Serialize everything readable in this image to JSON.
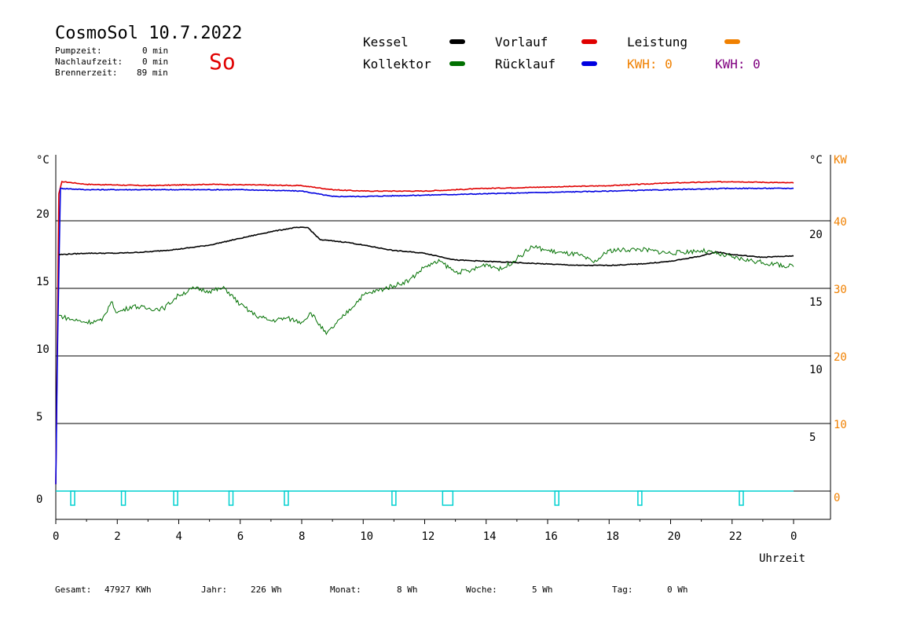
{
  "header": {
    "title": "CosmoSol 10.7.2022",
    "day": "So",
    "stats": [
      {
        "label": "Pumpzeit:",
        "value": "0 min"
      },
      {
        "label": "Nachlaufzeit:",
        "value": "0 min"
      },
      {
        "label": "Brennerzeit:",
        "value": "89 min"
      }
    ]
  },
  "legend": {
    "kessel": "Kessel",
    "vorlauf": "Vorlauf",
    "leistung": "Leistung",
    "kollektor": "Kollektor",
    "ruecklauf": "Rücklauf",
    "kwh_orange": "KWH: 0",
    "kwh_purple": "KWH: 0"
  },
  "colors": {
    "kessel": "#000000",
    "vorlauf": "#e00000",
    "ruecklauf": "#0000e0",
    "kollektor": "#007000",
    "leistung": "#f08000",
    "kwh_purple": "#800080",
    "pump": "#00d0d0"
  },
  "footer": [
    {
      "label": "Gesamt:",
      "value": "47927 KWh"
    },
    {
      "label": "Jahr:",
      "value": "226 Wh"
    },
    {
      "label": "Monat:",
      "value": "8 Wh"
    },
    {
      "label": "Woche:",
      "value": "5 Wh"
    },
    {
      "label": "Tag:",
      "value": "0 Wh"
    }
  ],
  "chart_data": {
    "type": "line",
    "xlabel": "Uhrzeit",
    "ylabel_left": "°C",
    "ylabel_right": "°C",
    "ylabel_right2": "KW",
    "x_ticks": [
      "0",
      "2",
      "4",
      "6",
      "8",
      "10",
      "12",
      "14",
      "16",
      "18",
      "20",
      "22",
      "0"
    ],
    "y_ticks_left": [
      "0",
      "5",
      "10",
      "15",
      "20"
    ],
    "y_ticks_right": [
      "5",
      "10",
      "15",
      "20"
    ],
    "y_ticks_kw": [
      "0",
      "10",
      "20",
      "30",
      "40"
    ],
    "xlim": [
      0,
      24
    ],
    "ylim": [
      0,
      25
    ],
    "grid": true,
    "series": [
      {
        "name": "Vorlauf",
        "key": "vorlauf",
        "points": [
          [
            0,
            0.5
          ],
          [
            0.1,
            22
          ],
          [
            0.2,
            22.9
          ],
          [
            1,
            22.7
          ],
          [
            3,
            22.6
          ],
          [
            5,
            22.7
          ],
          [
            8,
            22.6
          ],
          [
            9,
            22.3
          ],
          [
            10,
            22.2
          ],
          [
            12,
            22.2
          ],
          [
            14,
            22.4
          ],
          [
            16,
            22.5
          ],
          [
            18,
            22.6
          ],
          [
            20,
            22.8
          ],
          [
            22,
            22.9
          ],
          [
            24,
            22.8
          ]
        ]
      },
      {
        "name": "Rücklauf",
        "key": "ruecklauf",
        "points": [
          [
            0,
            0.5
          ],
          [
            0.05,
            10
          ],
          [
            0.15,
            22.4
          ],
          [
            1,
            22.3
          ],
          [
            3,
            22.3
          ],
          [
            6,
            22.3
          ],
          [
            8,
            22.2
          ],
          [
            9,
            21.8
          ],
          [
            10,
            21.8
          ],
          [
            12,
            21.9
          ],
          [
            14,
            22
          ],
          [
            16,
            22.1
          ],
          [
            18,
            22.2
          ],
          [
            20,
            22.3
          ],
          [
            22,
            22.4
          ],
          [
            24,
            22.4
          ]
        ]
      },
      {
        "name": "Kessel",
        "key": "kessel",
        "points": [
          [
            0.1,
            17.5
          ],
          [
            1,
            17.6
          ],
          [
            2,
            17.6
          ],
          [
            3,
            17.7
          ],
          [
            4,
            17.9
          ],
          [
            5,
            18.2
          ],
          [
            6,
            18.7
          ],
          [
            7,
            19.2
          ],
          [
            7.8,
            19.5
          ],
          [
            8.2,
            19.5
          ],
          [
            8.6,
            18.6
          ],
          [
            9.5,
            18.4
          ],
          [
            10,
            18.2
          ],
          [
            11,
            17.8
          ],
          [
            12,
            17.6
          ],
          [
            13,
            17.1
          ],
          [
            14,
            17
          ],
          [
            15,
            16.9
          ],
          [
            16,
            16.8
          ],
          [
            17,
            16.7
          ],
          [
            18,
            16.7
          ],
          [
            19,
            16.8
          ],
          [
            20,
            17
          ],
          [
            21,
            17.4
          ],
          [
            21.5,
            17.7
          ],
          [
            22,
            17.5
          ],
          [
            23,
            17.3
          ],
          [
            24,
            17.4
          ]
        ]
      },
      {
        "name": "Kollektor",
        "key": "kollektor",
        "points": [
          [
            0.1,
            13
          ],
          [
            0.5,
            12.7
          ],
          [
            1,
            12.5
          ],
          [
            1.5,
            12.6
          ],
          [
            1.8,
            14
          ],
          [
            2,
            13.2
          ],
          [
            2.5,
            13.7
          ],
          [
            3,
            13.5
          ],
          [
            3.5,
            13.5
          ],
          [
            4,
            14.5
          ],
          [
            4.5,
            15
          ],
          [
            5,
            14.8
          ],
          [
            5.5,
            15
          ],
          [
            6,
            13.8
          ],
          [
            6.5,
            13
          ],
          [
            7,
            12.6
          ],
          [
            7.5,
            12.8
          ],
          [
            8,
            12.5
          ],
          [
            8.3,
            13.2
          ],
          [
            8.8,
            11.6
          ],
          [
            9.3,
            12.8
          ],
          [
            10,
            14.5
          ],
          [
            11,
            15.2
          ],
          [
            11.5,
            15.6
          ],
          [
            12,
            16.6
          ],
          [
            12.5,
            17
          ],
          [
            13,
            16.2
          ],
          [
            13.5,
            16.3
          ],
          [
            14,
            16.8
          ],
          [
            14.5,
            16.4
          ],
          [
            15,
            17.2
          ],
          [
            15.5,
            18.1
          ],
          [
            16,
            17.8
          ],
          [
            16.5,
            17.6
          ],
          [
            17,
            17.5
          ],
          [
            17.5,
            16.9
          ],
          [
            18,
            17.8
          ],
          [
            19,
            17.9
          ],
          [
            20,
            17.6
          ],
          [
            21,
            17.8
          ],
          [
            22,
            17.3
          ],
          [
            23,
            16.9
          ],
          [
            24,
            16.6
          ]
        ]
      }
    ],
    "pump_pulses": [
      0.55,
      2.2,
      3.9,
      5.7,
      7.5,
      11,
      12.75,
      16.3,
      19,
      22.3
    ]
  }
}
